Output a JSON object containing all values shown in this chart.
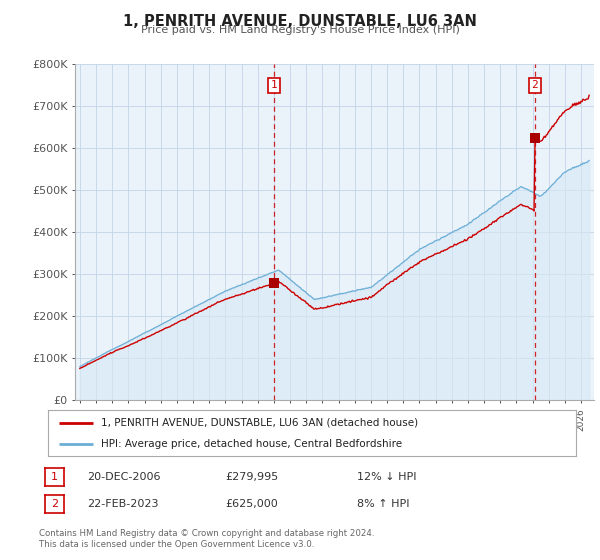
{
  "title": "1, PENRITH AVENUE, DUNSTABLE, LU6 3AN",
  "subtitle": "Price paid vs. HM Land Registry's House Price Index (HPI)",
  "legend_line1": "1, PENRITH AVENUE, DUNSTABLE, LU6 3AN (detached house)",
  "legend_line2": "HPI: Average price, detached house, Central Bedfordshire",
  "footer": "Contains HM Land Registry data © Crown copyright and database right 2024.\nThis data is licensed under the Open Government Licence v3.0.",
  "sale1_year": 2007.0,
  "sale1_price": 279995,
  "sale2_year": 2023.13,
  "sale2_price": 625000,
  "hpi_color": "#6baed6",
  "hpi_fill_color": "#d6e8f5",
  "price_color": "#cc0000",
  "sale_marker_color": "#aa0000",
  "background_color": "#ffffff",
  "chart_bg_color": "#eaf2fa",
  "grid_color": "#c8d8ea",
  "ylim_max": 800000,
  "xlim_start": 1995,
  "xlim_end": 2026.5,
  "yticks": [
    0,
    100000,
    200000,
    300000,
    400000,
    500000,
    600000,
    700000,
    800000
  ],
  "ytick_labels": [
    "£0",
    "£100K",
    "£200K",
    "£300K",
    "£400K",
    "£500K",
    "£600K",
    "£700K",
    "£800K"
  ]
}
